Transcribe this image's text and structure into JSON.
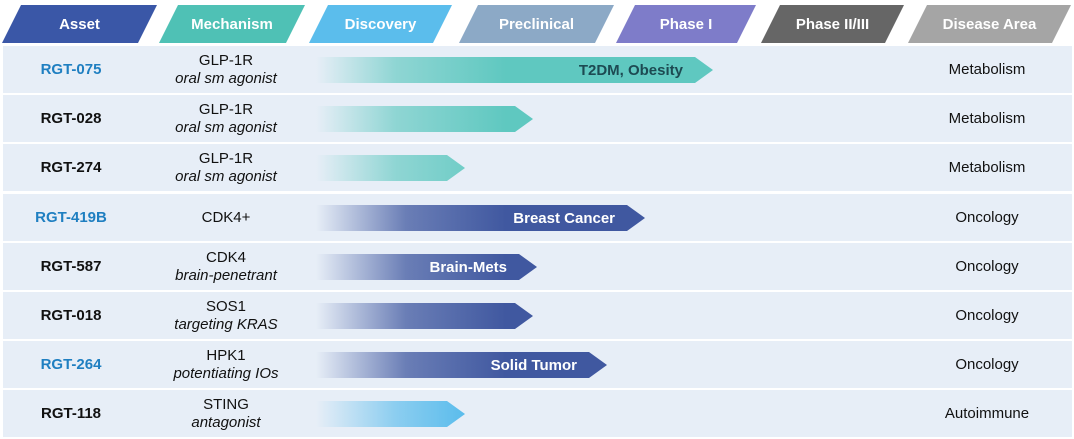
{
  "headers": {
    "asset": "Asset",
    "mechanism": "Mechanism",
    "discovery": "Discovery",
    "preclinical": "Preclinical",
    "phase1": "Phase I",
    "phase23": "Phase II/III",
    "disease_area": "Disease Area"
  },
  "colors": {
    "asset_header": "#3a57a7",
    "mechanism_header": "#4fc1b5",
    "discovery_header": "#5bbdec",
    "preclinical_header": "#8ca9c6",
    "phase1_header": "#7e7cc9",
    "phase23_header": "#666666",
    "disease_header": "#a5a5a5",
    "row_background": "#e7eef7",
    "metabolism_bar": "#5fc8c0",
    "oncology_bar": "#4058a0",
    "autoimmune_bar": "#5abcec",
    "highlight_asset_text": "#1f7fc1"
  },
  "rows": [
    {
      "asset": "RGT-075",
      "mech": "GLP-1R",
      "mech_sub": "oral sm agonist",
      "area": "Metabolism"
    },
    {
      "asset": "RGT-028",
      "mech": "GLP-1R",
      "mech_sub": "oral sm agonist",
      "area": "Metabolism"
    },
    {
      "asset": "RGT-274",
      "mech": "GLP-1R",
      "mech_sub": "oral sm agonist",
      "area": "Metabolism"
    },
    {
      "asset": "RGT-419B",
      "mech": "CDK4+",
      "mech_sub": "",
      "area": "Oncology"
    },
    {
      "asset": "RGT-587",
      "mech": "CDK4",
      "mech_sub": "brain-penetrant",
      "area": "Oncology"
    },
    {
      "asset": "RGT-018",
      "mech": "SOS1",
      "mech_sub": "targeting KRAS",
      "area": "Oncology"
    },
    {
      "asset": "RGT-264",
      "mech": "HPK1",
      "mech_sub": "potentiating IOs",
      "area": "Oncology"
    },
    {
      "asset": "RGT-118",
      "mech": "STING",
      "mech_sub": "antagonist",
      "area": "Autoimmune"
    }
  ],
  "chart_data": {
    "type": "bar",
    "orientation": "horizontal",
    "x_stages": [
      "Discovery",
      "Preclinical",
      "Phase I",
      "Phase II/III"
    ],
    "x_scale": "stages progressed (0 = start of Discovery, 4 = end of Phase II/III)",
    "categories": [
      "RGT-075",
      "RGT-028",
      "RGT-274",
      "RGT-419B",
      "RGT-587",
      "RGT-018",
      "RGT-264",
      "RGT-118"
    ],
    "values": [
      3.2,
      1.75,
      1.2,
      2.65,
      1.78,
      1.75,
      2.35,
      1.2
    ],
    "bar_labels": [
      "T2DM, Obesity",
      "",
      "",
      "Breast Cancer",
      "Brain-Mets",
      "",
      "Solid Tumor",
      ""
    ],
    "highlighted": [
      true,
      false,
      false,
      true,
      false,
      false,
      true,
      false
    ],
    "series_by_row": [
      "Metabolism",
      "Metabolism",
      "Metabolism",
      "Oncology",
      "Oncology",
      "Oncology",
      "Oncology",
      "Autoimmune"
    ],
    "xlim": [
      0,
      4
    ],
    "grid": false
  }
}
